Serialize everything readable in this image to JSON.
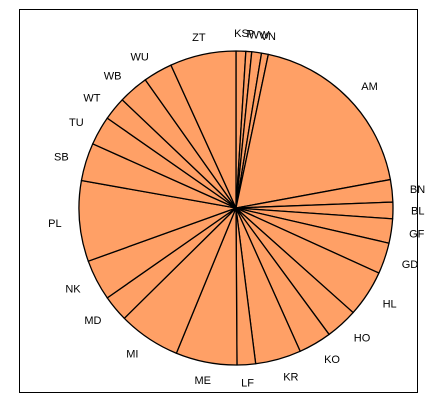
{
  "chart_data": {
    "type": "pie",
    "start_angle_deg": 90,
    "direction": "clockwise",
    "colors": {
      "slice_fill": "#FFA066",
      "slice_stroke": "#000000",
      "background": "#FFFFFF"
    },
    "slices": [
      {
        "label": "KS",
        "value": 1.0
      },
      {
        "label": "P",
        "value": 0.6
      },
      {
        "label": "WW",
        "value": 1.0
      },
      {
        "label": "VN",
        "value": 0.7
      },
      {
        "label": "AM",
        "value": 18.8
      },
      {
        "label": "BN",
        "value": 2.3
      },
      {
        "label": "BL",
        "value": 1.7
      },
      {
        "label": "GF",
        "value": 2.5
      },
      {
        "label": "GD",
        "value": 3.2
      },
      {
        "label": "HL",
        "value": 4.8
      },
      {
        "label": "HO",
        "value": 3.3
      },
      {
        "label": "KO",
        "value": 3.4
      },
      {
        "label": "KR",
        "value": 4.7
      },
      {
        "label": "LF",
        "value": 1.9
      },
      {
        "label": "ME",
        "value": 6.3
      },
      {
        "label": "MI",
        "value": 6.4
      },
      {
        "label": "MD",
        "value": 2.7
      },
      {
        "label": "NK",
        "value": 4.2
      },
      {
        "label": "PL",
        "value": 8.3
      },
      {
        "label": "SB",
        "value": 3.9
      },
      {
        "label": "TU",
        "value": 3.0
      },
      {
        "label": "WT",
        "value": 2.4
      },
      {
        "label": "WB",
        "value": 3.1
      },
      {
        "label": "WU",
        "value": 3.0
      },
      {
        "label": "ZT",
        "value": 6.8
      }
    ]
  }
}
